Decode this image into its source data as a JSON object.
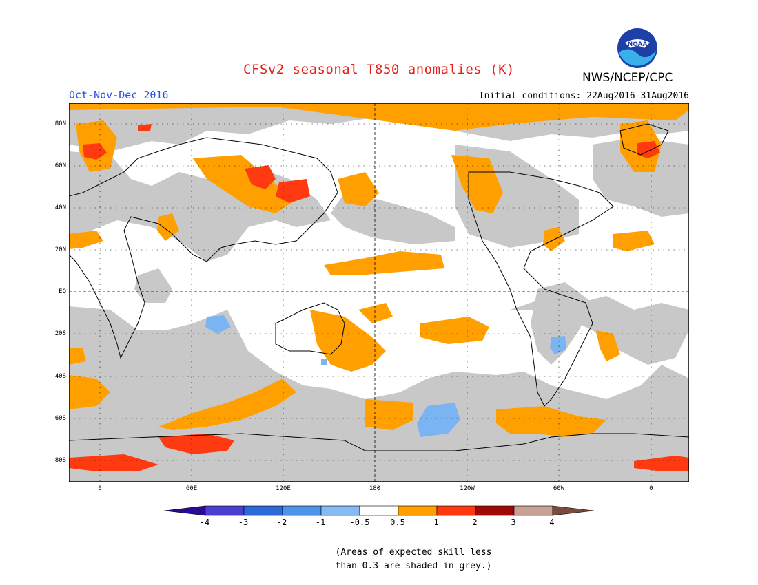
{
  "header": {
    "title": "CFSv2 seasonal T850 anomalies (K)",
    "agency": "NWS/NCEP/CPC",
    "logo_text": "NOAA",
    "season": "Oct-Nov-Dec 2016",
    "initial_conditions": "Initial conditions: 22Aug2016-31Aug2016"
  },
  "axes": {
    "lat_labels": [
      "80N",
      "60N",
      "40N",
      "20N",
      "EQ",
      "20S",
      "40S",
      "60S",
      "80S"
    ],
    "lon_labels": [
      "0",
      "60E",
      "120E",
      "180",
      "120W",
      "60W",
      "0"
    ]
  },
  "colorbar": {
    "labels": [
      "-4",
      "-3",
      "-2",
      "-1",
      "-0.5",
      "0.5",
      "1",
      "2",
      "3",
      "4"
    ],
    "colors": [
      "#2a0a94",
      "#4a3fd0",
      "#2c6ad8",
      "#4a95ea",
      "#86baf4",
      "#ffffff",
      "#ffa000",
      "#ff3a10",
      "#a00a06",
      "#c8a094",
      "#7a4a3a"
    ]
  },
  "colors": {
    "skill_mask_grey": "#c8c8c8",
    "warm_anomaly": "#ffa000",
    "strong_warm_anomaly": "#ff3a10",
    "cool_anomaly": "#7ab4f2"
  },
  "note": {
    "line1": "(Areas of expected skill less",
    "line2": "than 0.3 are shaded in grey.)"
  }
}
